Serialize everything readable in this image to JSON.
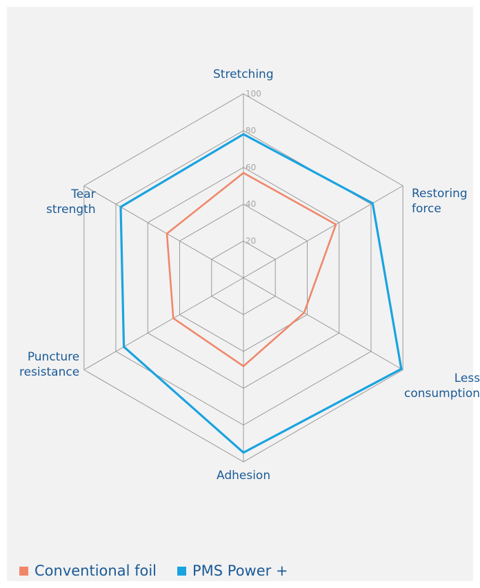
{
  "chart_data": {
    "type": "radar",
    "categories": [
      "Stretching",
      "Restoring\nforce",
      "Less\nconsumption",
      "Adhesion",
      "Puncture\nresistance",
      "Tear\nstrength"
    ],
    "axis_ticks": [
      "20",
      "40",
      "60",
      "80",
      "100"
    ],
    "ylim": [
      0,
      100
    ],
    "grid": true,
    "legend_position": "bottom-left",
    "series": [
      {
        "name": "Conventional foil",
        "color": "#f0876a",
        "values": [
          57,
          58,
          38,
          48,
          44,
          48
        ]
      },
      {
        "name": "PMS Power +",
        "color": "#1aa3e0",
        "values": [
          78,
          81,
          99,
          95,
          75,
          77
        ]
      }
    ]
  },
  "legend": {
    "items": [
      {
        "label": "Conventional foil",
        "color": "#f0876a"
      },
      {
        "label": "PMS Power +",
        "color": "#1aa3e0"
      }
    ]
  },
  "colors": {
    "grid": "#999999",
    "tick_text": "#a6a6a6",
    "label_text": "#1a5a96"
  }
}
